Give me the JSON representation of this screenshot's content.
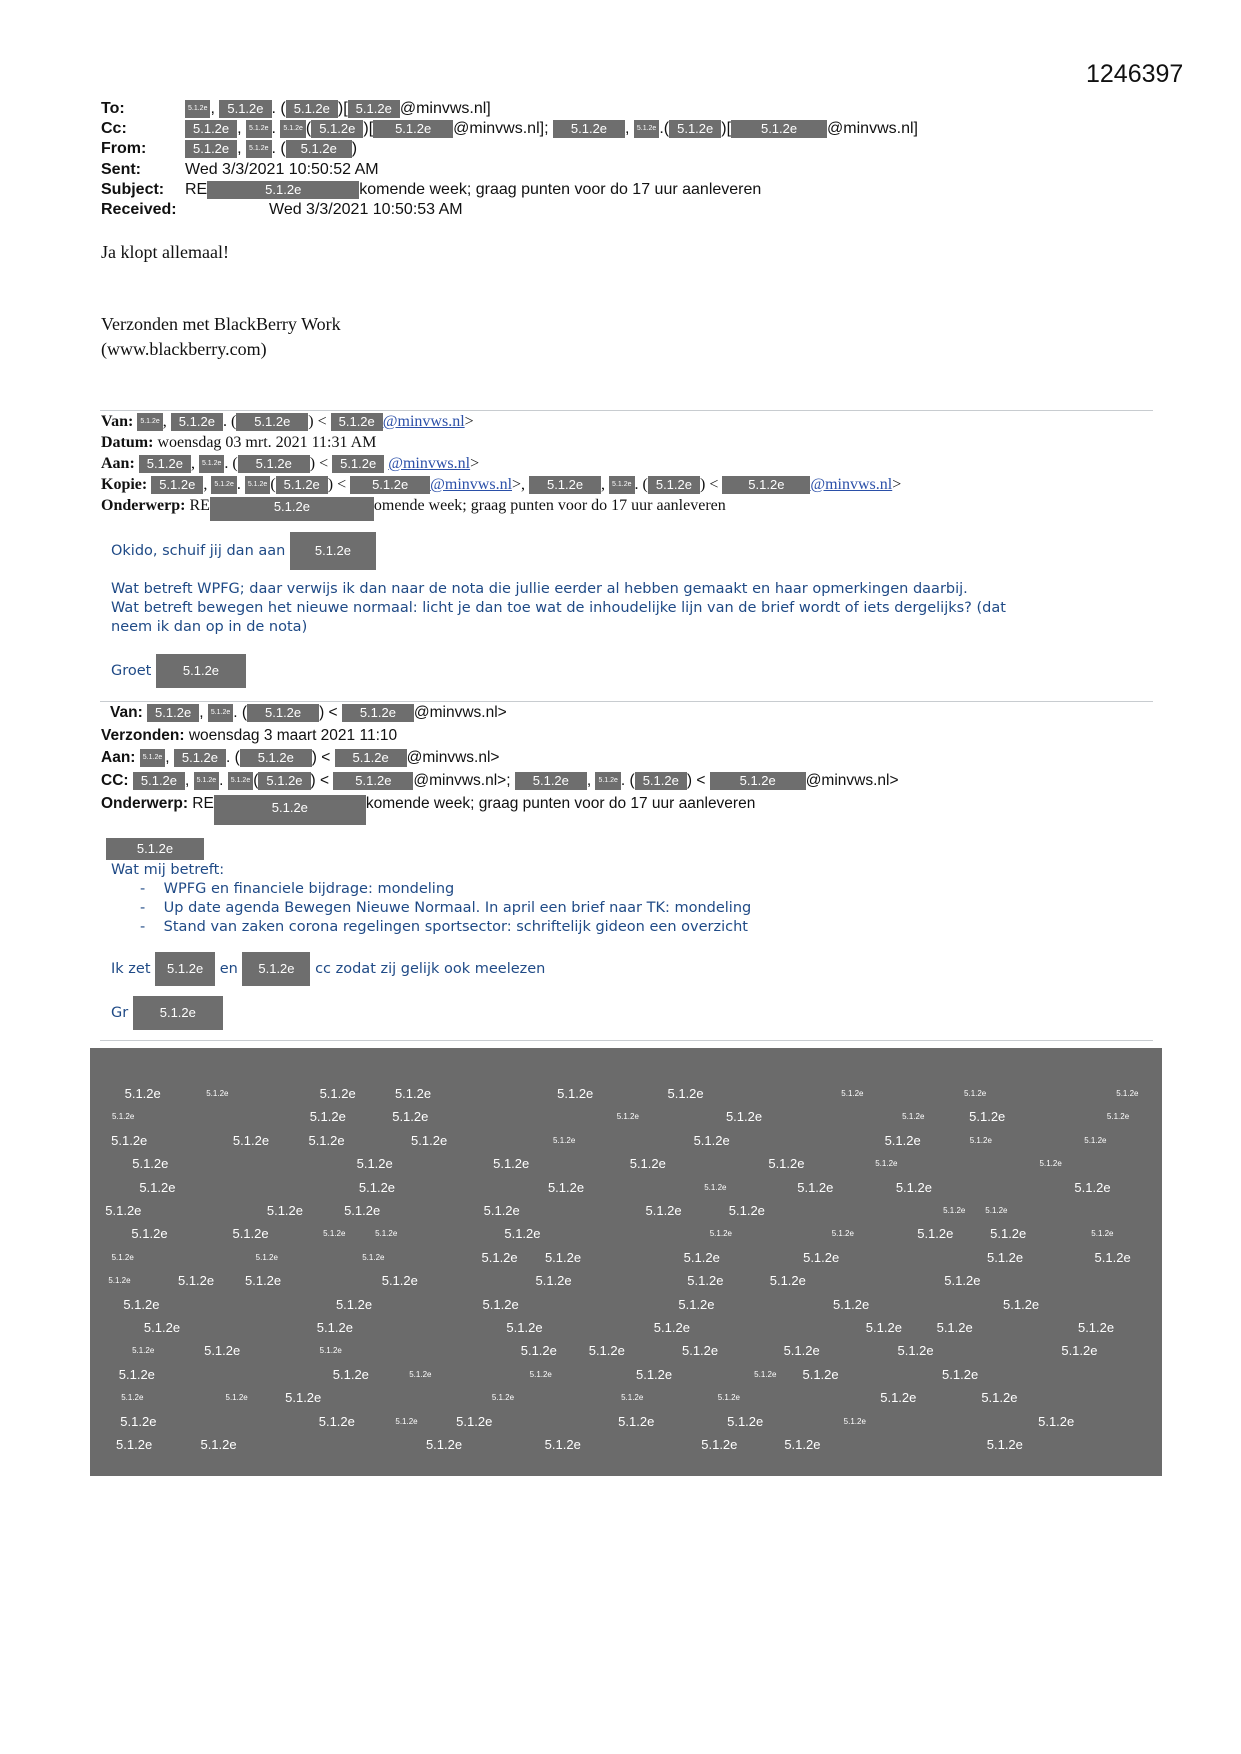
{
  "doc_number": "1246397",
  "redaction_label": "5.1.2e",
  "colors": {
    "redaction": "#6e6e6e",
    "body_text": "#1f4a86",
    "link": "#2a4fa8"
  },
  "email1": {
    "to_label": "To:",
    "cc_label": "Cc:",
    "from_label": "From:",
    "sent_label": "Sent:",
    "subject_label": "Subject:",
    "received_label": "Received:",
    "domain": "@minvws.nl]",
    "domain_semi": "@minvws.nl];",
    "sent": "Wed 3/3/2021 10:50:52 AM",
    "subject_prefix": "RE",
    "subject_rest": "komende week; graag punten voor do 17 uur aanleveren",
    "received": "Wed 3/3/2021 10:50:53 AM",
    "body": "Ja klopt allemaal!",
    "signature_1": "Verzonden met BlackBerry Work",
    "signature_2": "(www.blackberry.com)"
  },
  "email2": {
    "van_label": "Van:",
    "datum_label": "Datum:",
    "aan_label": "Aan:",
    "kopie_label": "Kopie:",
    "onderwerp_label": "Onderwerp:",
    "domain": "@minvws.nl",
    "datum": "woensdag 03 mrt. 2021 11:31 AM",
    "subject_prefix": "RE",
    "subject_rest": "omende week; graag punten voor do 17 uur aanleveren",
    "okido": "Okido, schuif jij dan aan",
    "p1": "Wat betreft WPFG; daar verwijs ik dan naar de nota die jullie eerder al hebben gemaakt en haar opmerkingen daarbij.",
    "p2": "Wat betreft bewegen het nieuwe normaal: licht je dan toe wat de inhoudelijke lijn van de brief wordt of iets dergelijks? (dat",
    "p3": "neem ik dan op in de nota)",
    "groet": "Groet"
  },
  "email3": {
    "van_label": "Van:",
    "verzonden_label": "Verzonden:",
    "aan_label": "Aan:",
    "cc_label": "CC:",
    "onderwerp_label": "Onderwerp:",
    "domain": "@minvws.nl>",
    "domain_semi": "@minvws.nl>;",
    "verzonden": "woensdag 3 maart 2021 11:10",
    "subject_prefix": "RE",
    "subject_rest": "komende week; graag punten voor do 17 uur aanleveren",
    "intro": "Wat mij betreft:",
    "bullets": [
      "WPFG en financiele bijdrage: mondeling",
      "Up date agenda Bewegen Nieuwe Normaal. In april een brief naar TK: mondeling",
      "Stand van zaken corona regelingen sportsector: schriftelijk gideon een overzicht"
    ],
    "ik_zet": "Ik zet",
    "en": "en",
    "cc_text": "cc zodat zij gelijk ook meelezen",
    "gr": "Gr"
  }
}
